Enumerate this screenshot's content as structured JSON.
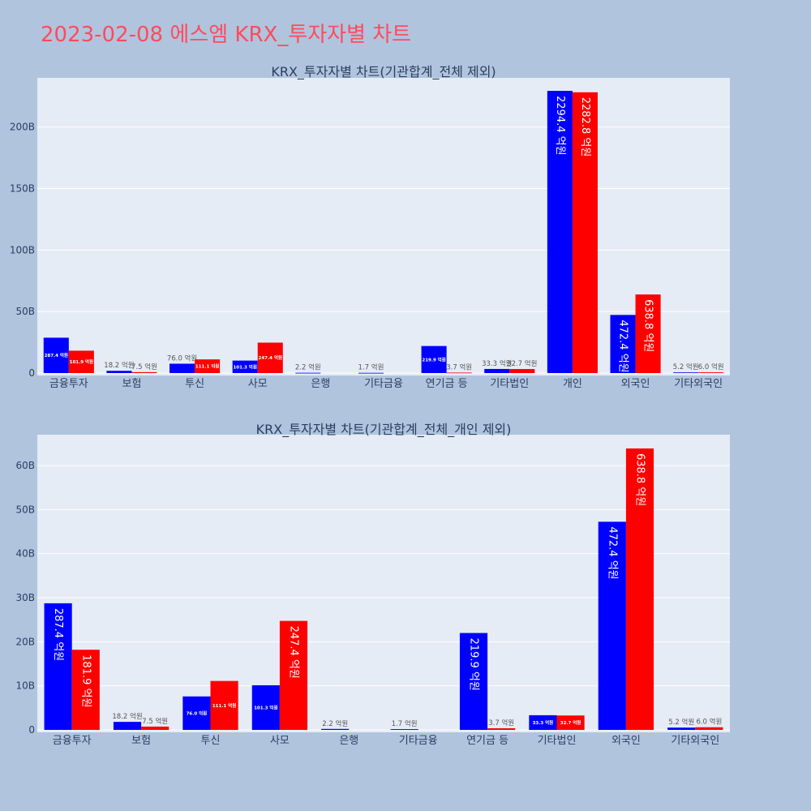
{
  "page": {
    "title": "2023-02-08 에스엠 KRX_투자자별 차트"
  },
  "colors": {
    "series_a": "#0000ff",
    "series_b": "#ff0000",
    "plot_bg": "#e5ecf6",
    "page_bg": "#b0c4de",
    "title": "#ff4b5c"
  },
  "chart_data": [
    {
      "type": "bar",
      "title": "KRX_투자자별 차트(기관합계_전체 제외)",
      "categories": [
        "금융투자",
        "보험",
        "투신",
        "사모",
        "은행",
        "기타금융",
        "연기금 등",
        "기타법인",
        "개인",
        "외국인",
        "기타외국인"
      ],
      "series": [
        {
          "values": [
            28.74,
            1.82,
            7.6,
            10.13,
            0.22,
            0.17,
            21.99,
            3.33,
            229.44,
            47.24,
            0.52
          ],
          "labels": [
            "287.4 억원",
            "18.2 억원",
            "76.0 억원",
            "101.3 억원",
            "2.2 억원",
            "1.7 억원",
            "219.9 억원",
            "33.3 억원",
            "2294.4 억원",
            "472.4 억원",
            "5.2 억원"
          ]
        },
        {
          "values": [
            18.19,
            0.75,
            11.11,
            24.74,
            0,
            0,
            0.37,
            3.27,
            228.28,
            63.88,
            0.6
          ],
          "labels": [
            "181.9 억원",
            "7.5 억원",
            "111.1 억원",
            "247.4 억원",
            "",
            "",
            "3.7 억원",
            "32.7 억원",
            "2282.8 억원",
            "638.8 억원",
            "6.0 억원"
          ]
        }
      ],
      "ylim": [
        0,
        240
      ],
      "yticks": [
        0,
        50,
        100,
        150,
        200
      ],
      "ytick_labels": [
        "0",
        "50B",
        "100B",
        "150B",
        "200B"
      ],
      "grid": true
    },
    {
      "type": "bar",
      "title": "KRX_투자자별 차트(기관합계_전체_개인 제외)",
      "categories": [
        "금융투자",
        "보험",
        "투신",
        "사모",
        "은행",
        "기타금융",
        "연기금 등",
        "기타법인",
        "외국인",
        "기타외국인"
      ],
      "series": [
        {
          "values": [
            28.74,
            1.82,
            7.6,
            10.13,
            0.22,
            0.17,
            21.99,
            3.33,
            47.24,
            0.52
          ],
          "labels": [
            "287.4 억원",
            "18.2 억원",
            "76.0 억원",
            "101.3 억원",
            "2.2 억원",
            "1.7 억원",
            "219.9 억원",
            "33.3 억원",
            "472.4 억원",
            "5.2 억원"
          ]
        },
        {
          "values": [
            18.19,
            0.75,
            11.11,
            24.74,
            0,
            0,
            0.37,
            3.27,
            63.88,
            0.6
          ],
          "labels": [
            "181.9 억원",
            "7.5 억원",
            "111.1 억원",
            "247.4 억원",
            "",
            "",
            "3.7 억원",
            "32.7 억원",
            "638.8 억원",
            "6.0 억원"
          ]
        }
      ],
      "ylim": [
        0,
        67
      ],
      "yticks": [
        0,
        10,
        20,
        30,
        40,
        50,
        60
      ],
      "ytick_labels": [
        "0",
        "10B",
        "20B",
        "30B",
        "40B",
        "50B",
        "60B"
      ],
      "grid": true
    }
  ]
}
